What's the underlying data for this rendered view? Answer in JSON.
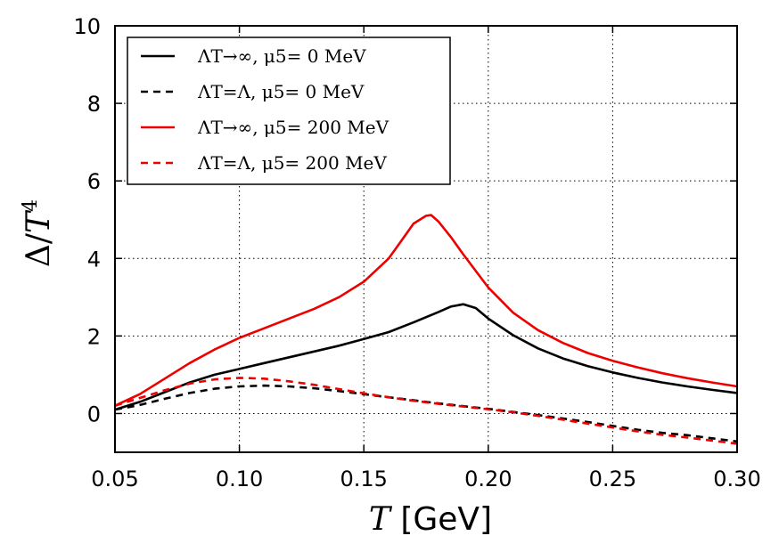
{
  "chart_data": {
    "type": "line",
    "title": "",
    "xlabel": "T [GeV]",
    "ylabel": "Δ/T⁴",
    "xlim": [
      0.05,
      0.3
    ],
    "ylim": [
      -1,
      10
    ],
    "xticks": [
      0.05,
      0.1,
      0.15,
      0.2,
      0.25,
      0.3
    ],
    "xtick_labels": [
      "0.05",
      "0.10",
      "0.15",
      "0.20",
      "0.25",
      "0.30"
    ],
    "yticks": [
      0,
      2,
      4,
      6,
      8,
      10
    ],
    "ytick_labels": [
      "0",
      "2",
      "4",
      "6",
      "8",
      "10"
    ],
    "grid": true,
    "legend_position": "top-left",
    "series": [
      {
        "name": "ΛT→∞, μ5= 0 MeV",
        "color": "#000000",
        "style": "solid",
        "x": [
          0.05,
          0.06,
          0.07,
          0.08,
          0.09,
          0.1,
          0.11,
          0.12,
          0.13,
          0.14,
          0.15,
          0.16,
          0.17,
          0.18,
          0.185,
          0.19,
          0.195,
          0.2,
          0.21,
          0.22,
          0.23,
          0.24,
          0.25,
          0.26,
          0.27,
          0.28,
          0.29,
          0.3
        ],
        "y": [
          0.1,
          0.3,
          0.55,
          0.8,
          1.0,
          1.15,
          1.3,
          1.45,
          1.6,
          1.75,
          1.92,
          2.1,
          2.35,
          2.62,
          2.76,
          2.82,
          2.72,
          2.45,
          2.02,
          1.68,
          1.42,
          1.22,
          1.06,
          0.92,
          0.8,
          0.7,
          0.61,
          0.53
        ]
      },
      {
        "name": "ΛT=Λ, μ5= 0 MeV",
        "color": "#000000",
        "style": "dashed",
        "x": [
          0.05,
          0.06,
          0.07,
          0.08,
          0.09,
          0.1,
          0.11,
          0.12,
          0.13,
          0.14,
          0.15,
          0.16,
          0.17,
          0.18,
          0.19,
          0.2,
          0.21,
          0.22,
          0.23,
          0.24,
          0.25,
          0.26,
          0.27,
          0.28,
          0.29,
          0.3
        ],
        "y": [
          0.1,
          0.22,
          0.38,
          0.53,
          0.64,
          0.7,
          0.72,
          0.7,
          0.65,
          0.58,
          0.5,
          0.42,
          0.34,
          0.26,
          0.19,
          0.12,
          0.04,
          -0.04,
          -0.13,
          -0.22,
          -0.32,
          -0.42,
          -0.5,
          -0.56,
          -0.64,
          -0.72
        ]
      },
      {
        "name": "ΛT→∞, μ5= 200 MeV",
        "color": "#ee0000",
        "style": "solid",
        "x": [
          0.05,
          0.06,
          0.07,
          0.08,
          0.09,
          0.1,
          0.11,
          0.12,
          0.13,
          0.14,
          0.15,
          0.16,
          0.165,
          0.17,
          0.175,
          0.177,
          0.18,
          0.185,
          0.19,
          0.2,
          0.21,
          0.22,
          0.23,
          0.24,
          0.25,
          0.26,
          0.27,
          0.28,
          0.29,
          0.3
        ],
        "y": [
          0.2,
          0.5,
          0.9,
          1.3,
          1.65,
          1.95,
          2.2,
          2.45,
          2.7,
          3.0,
          3.4,
          4.0,
          4.45,
          4.9,
          5.1,
          5.12,
          4.95,
          4.55,
          4.1,
          3.25,
          2.6,
          2.15,
          1.82,
          1.56,
          1.36,
          1.19,
          1.04,
          0.91,
          0.8,
          0.7
        ]
      },
      {
        "name": "ΛT=Λ, μ5= 200  MeV",
        "color": "#ee0000",
        "style": "dashed",
        "x": [
          0.05,
          0.06,
          0.07,
          0.08,
          0.09,
          0.1,
          0.11,
          0.12,
          0.13,
          0.14,
          0.15,
          0.16,
          0.17,
          0.18,
          0.19,
          0.2,
          0.21,
          0.22,
          0.23,
          0.24,
          0.25,
          0.26,
          0.27,
          0.28,
          0.29,
          0.3
        ],
        "y": [
          0.2,
          0.4,
          0.6,
          0.77,
          0.88,
          0.92,
          0.9,
          0.83,
          0.74,
          0.63,
          0.52,
          0.42,
          0.33,
          0.25,
          0.18,
          0.11,
          0.03,
          -0.06,
          -0.16,
          -0.26,
          -0.36,
          -0.46,
          -0.55,
          -0.62,
          -0.7,
          -0.78
        ]
      }
    ]
  },
  "legend": {
    "items": [
      {
        "label": "ΛT→∞, μ5=  0 MeV",
        "color": "#000000",
        "style": "solid"
      },
      {
        "label": "ΛT=Λ, μ5=  0 MeV",
        "color": "#000000",
        "style": "dashed"
      },
      {
        "label": "ΛT→∞, μ5=  200 MeV",
        "color": "#ee0000",
        "style": "solid"
      },
      {
        "label": "ΛT=Λ, μ5=  200  MeV",
        "color": "#ee0000",
        "style": "dashed"
      }
    ]
  }
}
